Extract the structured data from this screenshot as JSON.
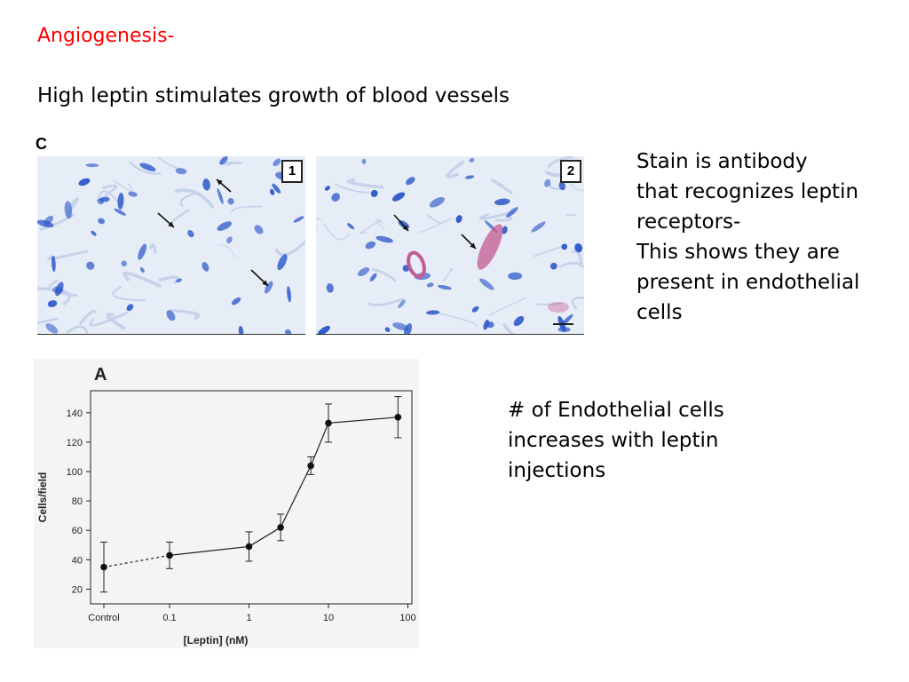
{
  "slide": {
    "title": "Angiogenesis-",
    "subtitle": "High leptin stimulates growth of blood vessels",
    "stain_note_lines": [
      "Stain is antibody",
      "that recognizes leptin",
      "receptors-",
      "This shows they are",
      "present in endothelial",
      "cells"
    ],
    "endo_note_lines": [
      "# of Endothelial cells",
      "increases with leptin",
      "injections"
    ]
  },
  "figure_c": {
    "letter": "C",
    "panels": [
      {
        "label": "1",
        "description_name": "micrograph-control"
      },
      {
        "label": "2",
        "description_name": "micrograph-leptin"
      }
    ],
    "colors": {
      "stain": "#2a55c9",
      "receptor": "#c45a92",
      "background": "#e7edf7"
    }
  },
  "chart_data": {
    "type": "line",
    "panel_letter": "A",
    "x_tick_labels": [
      "Control",
      "0.1",
      "1",
      "10",
      "100"
    ],
    "x_scale": "log (nM), with Control at left",
    "xlabel": "[Leptin] (nM)",
    "ylabel": "Cells/field",
    "ylim": [
      10,
      155
    ],
    "y_ticks": [
      20,
      40,
      60,
      80,
      100,
      120,
      140
    ],
    "grid": false,
    "series": [
      {
        "points": [
          {
            "x": "Control",
            "y": 35,
            "err": 17
          },
          {
            "x": 0.1,
            "y": 43,
            "err": 9
          },
          {
            "x": 1,
            "y": 49,
            "err": 10
          },
          {
            "x": 2.5,
            "y": 62,
            "err": 9
          },
          {
            "x": 6,
            "y": 104,
            "err": 6
          },
          {
            "x": 10,
            "y": 133,
            "err": 13
          },
          {
            "x": 75,
            "y": 137,
            "err": 14
          }
        ]
      }
    ],
    "dashed_segment": [
      "Control",
      0.1
    ]
  }
}
